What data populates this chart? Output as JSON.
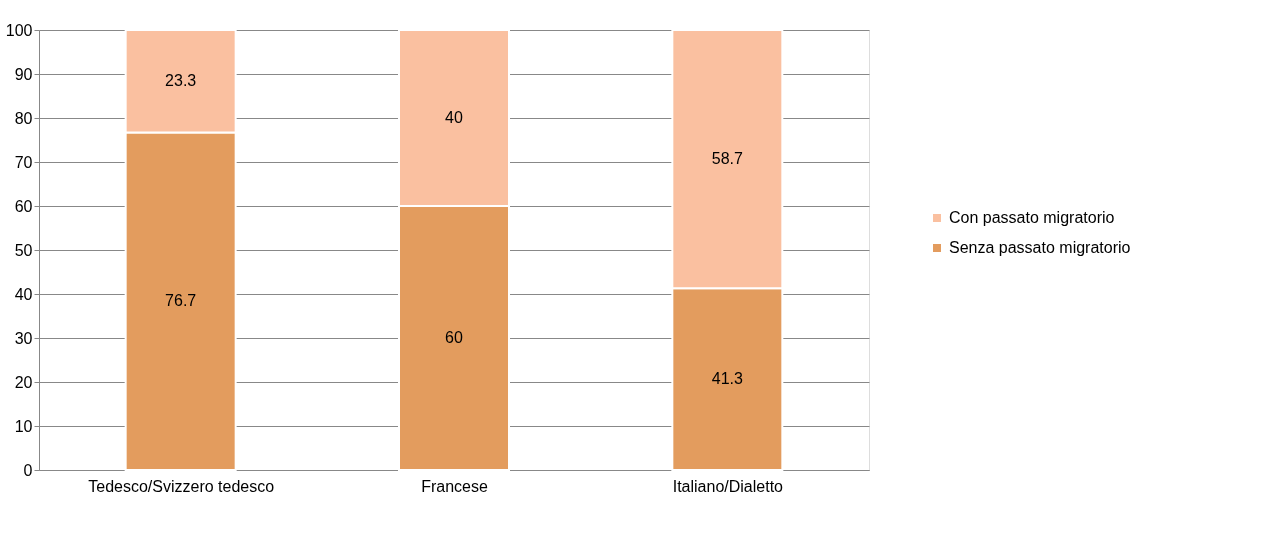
{
  "chart_data": {
    "type": "bar",
    "stacked": true,
    "categories": [
      "Tedesco/Svizzero tedesco",
      "Francese",
      "Italiano/Dialetto"
    ],
    "series": [
      {
        "name": "Senza passato migratorio",
        "color": "#e39c5e",
        "values": [
          76.7,
          60,
          41.3
        ]
      },
      {
        "name": "Con passato migratorio",
        "color": "#fac0a0",
        "values": [
          23.3,
          40,
          58.7
        ]
      }
    ],
    "ylim": [
      0,
      100
    ],
    "yticks": [
      0,
      10,
      20,
      30,
      40,
      50,
      60,
      70,
      80,
      90,
      100
    ],
    "grid": "y",
    "legend": "right",
    "data_labels": true
  }
}
